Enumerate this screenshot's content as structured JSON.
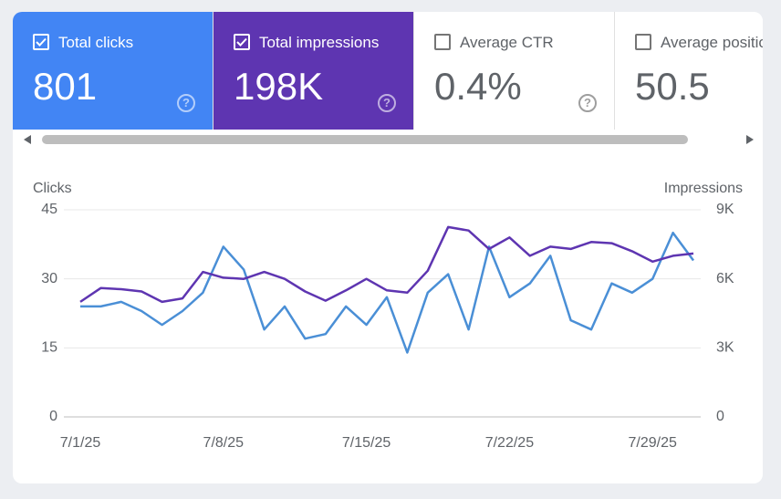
{
  "metrics": [
    {
      "label": "Total clicks",
      "value": "801",
      "checked": true,
      "color": "#4285f4"
    },
    {
      "label": "Total impressions",
      "value": "198K",
      "checked": true,
      "color": "#5e35b1"
    },
    {
      "label": "Average CTR",
      "value": "0.4%",
      "checked": false,
      "color": "#ffffff"
    },
    {
      "label": "Average position",
      "value": "50.5",
      "checked": false,
      "color": "#ffffff"
    }
  ],
  "chart_data": {
    "type": "line",
    "y_label": "Clicks",
    "y2_label": "Impressions",
    "categories": [
      "7/1/25",
      null,
      null,
      null,
      null,
      null,
      null,
      "7/8/25",
      null,
      null,
      null,
      null,
      null,
      null,
      "7/15/25",
      null,
      null,
      null,
      null,
      null,
      null,
      "7/22/25",
      null,
      null,
      null,
      null,
      null,
      null,
      "7/29/25",
      null,
      null
    ],
    "series": [
      {
        "color": "#4a8fd6",
        "axis": "y",
        "values": [
          24,
          24,
          25,
          23,
          20,
          23,
          27,
          37,
          32,
          19,
          24,
          17,
          18,
          24,
          20,
          26,
          14,
          27,
          31,
          19,
          37,
          26,
          29,
          35,
          21,
          19,
          29,
          27,
          30,
          40,
          34
        ]
      },
      {
        "color": "#5e35b1",
        "axis": "y2",
        "values": [
          5000,
          5600,
          5550,
          5450,
          5000,
          5150,
          6300,
          6050,
          6000,
          6300,
          6000,
          5450,
          5050,
          5500,
          6000,
          5500,
          5400,
          6350,
          8250,
          8100,
          7300,
          7800,
          7000,
          7400,
          7300,
          7600,
          7550,
          7200,
          6750,
          7000,
          7100
        ]
      }
    ],
    "ylim": [
      0,
      45
    ],
    "yticks": [
      0,
      15,
      30,
      45
    ],
    "y2lim": [
      0,
      9000
    ],
    "y2ticks": [
      0,
      {
        "value": 3000,
        "label": "3K"
      },
      {
        "value": 6000,
        "label": "6K"
      },
      {
        "value": 9000,
        "label": "9K"
      }
    ],
    "grid": true
  }
}
